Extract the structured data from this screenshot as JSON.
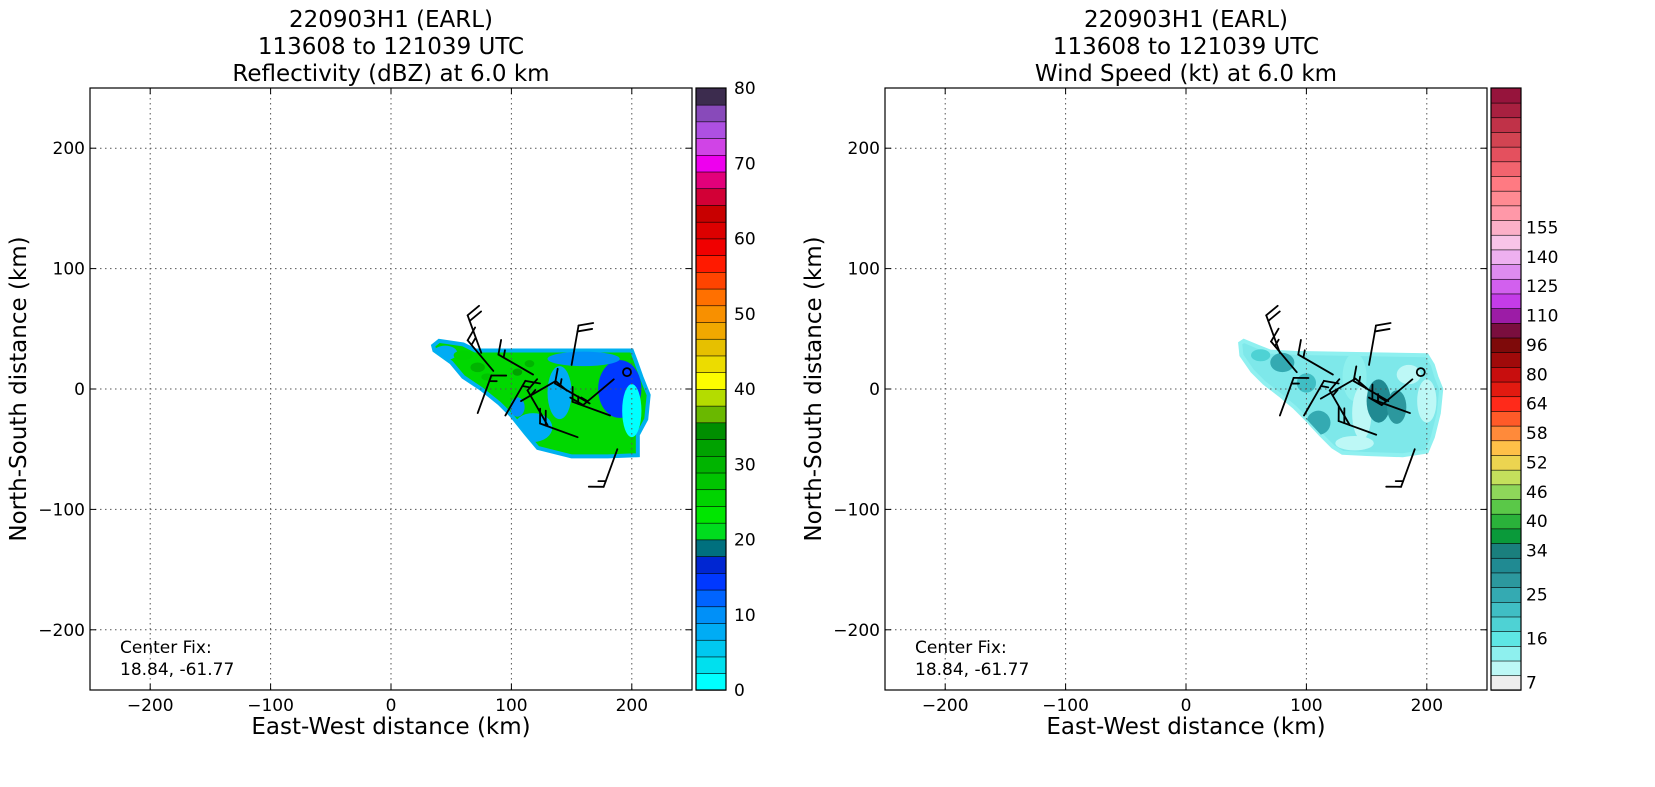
{
  "figure": {
    "background": "#ffffff"
  },
  "chart_data": [
    {
      "type": "heatmap",
      "title": [
        "220903H1 (EARL)",
        "113608 to 121039 UTC",
        "Reflectivity (dBZ) at 6.0 km"
      ],
      "xlabel": "East-West distance (km)",
      "ylabel": "North-South distance (km)",
      "xlim": [
        -250,
        250
      ],
      "ylim": [
        -250,
        250
      ],
      "xticks": [
        -200,
        -100,
        0,
        100,
        200
      ],
      "yticks": [
        -200,
        -100,
        0,
        100,
        200
      ],
      "xtick_labels": [
        "−200",
        "−100",
        "0",
        "100",
        "200"
      ],
      "ytick_labels": [
        "−200",
        "−100",
        "0",
        "100",
        "200"
      ],
      "grid": true,
      "annotation": [
        "Center Fix:",
        "18.84, -61.77"
      ],
      "colorbar": {
        "min": 0,
        "max": 80,
        "step": 2.5,
        "ticks": [
          0,
          10,
          20,
          30,
          40,
          50,
          60,
          70,
          80
        ],
        "tick_labels": [
          "0",
          "10",
          "20",
          "30",
          "40",
          "50",
          "60",
          "70",
          "80"
        ],
        "colors": [
          "#00ffff",
          "#00e0ee",
          "#00c8f0",
          "#00acf4",
          "#0090f8",
          "#0064ff",
          "#0038ff",
          "#0026d2",
          "#00707e",
          "#00dc1e",
          "#00e600",
          "#00d400",
          "#00c400",
          "#00b400",
          "#00a200",
          "#008e00",
          "#6ab800",
          "#b4dc00",
          "#fcfc00",
          "#ecdc00",
          "#e6c000",
          "#f0a800",
          "#f89000",
          "#ff7000",
          "#ff4400",
          "#ff1a00",
          "#f00000",
          "#dc0000",
          "#c80000",
          "#d20036",
          "#e2007a",
          "#ee00ee",
          "#d044e6",
          "#ae50e2",
          "#884aba",
          "#3c2c4e"
        ]
      },
      "echo_region": {
        "polygon": [
          [
            35,
            36
          ],
          [
            40,
            40
          ],
          [
            60,
            37
          ],
          [
            70,
            32
          ],
          [
            200,
            32
          ],
          [
            203,
            24
          ],
          [
            208,
            10
          ],
          [
            214,
            -5
          ],
          [
            212,
            -25
          ],
          [
            205,
            -38
          ],
          [
            205,
            -55
          ],
          [
            180,
            -56
          ],
          [
            150,
            -56
          ],
          [
            122,
            -49
          ],
          [
            112,
            -37
          ],
          [
            100,
            -22
          ],
          [
            90,
            -12
          ],
          [
            75,
            0
          ],
          [
            60,
            10
          ],
          [
            50,
            22
          ],
          [
            36,
            32
          ]
        ],
        "blobs": [
          {
            "x": 190,
            "y": 0,
            "rx": 18,
            "ry": 24,
            "value": 15
          },
          {
            "x": 200,
            "y": -18,
            "rx": 8,
            "ry": 22,
            "value": 2
          },
          {
            "x": 140,
            "y": -3,
            "rx": 10,
            "ry": 22,
            "value": 8
          },
          {
            "x": 118,
            "y": -32,
            "rx": 16,
            "ry": 12,
            "value": 8
          },
          {
            "x": 105,
            "y": -15,
            "rx": 6,
            "ry": 8,
            "value": 10
          },
          {
            "x": 160,
            "y": 25,
            "rx": 30,
            "ry": 6,
            "value": 12
          },
          {
            "x": 45,
            "y": 30,
            "rx": 10,
            "ry": 6,
            "value": 8
          },
          {
            "x": 60,
            "y": 28,
            "rx": 8,
            "ry": 4,
            "value": 28
          },
          {
            "x": 72,
            "y": 18,
            "rx": 6,
            "ry": 4,
            "value": 33
          },
          {
            "x": 105,
            "y": 14,
            "rx": 4,
            "ry": 3,
            "value": 35
          },
          {
            "x": 115,
            "y": 21,
            "rx": 4,
            "ry": 3,
            "value": 33
          },
          {
            "x": 80,
            "y": 10,
            "rx": 5,
            "ry": 3,
            "value": 30
          }
        ]
      },
      "wind_barbs": [
        {
          "x": 75,
          "y": 30,
          "dir": 340,
          "speed": 20
        },
        {
          "x": 85,
          "y": 15,
          "dir": 320,
          "speed": 15
        },
        {
          "x": 72,
          "y": -20,
          "dir": 20,
          "speed": 15
        },
        {
          "x": 95,
          "y": -22,
          "dir": 30,
          "speed": 15
        },
        {
          "x": 108,
          "y": -10,
          "dir": 60,
          "speed": 10
        },
        {
          "x": 118,
          "y": 12,
          "dir": 300,
          "speed": 15
        },
        {
          "x": 130,
          "y": -30,
          "dir": 330,
          "speed": 15
        },
        {
          "x": 150,
          "y": 20,
          "dir": 10,
          "speed": 20
        },
        {
          "x": 165,
          "y": -12,
          "dir": 300,
          "speed": 15
        },
        {
          "x": 155,
          "y": -40,
          "dir": 290,
          "speed": 20
        },
        {
          "x": 182,
          "y": -22,
          "dir": 290,
          "speed": 15
        },
        {
          "x": 188,
          "y": -50,
          "dir": 200,
          "speed": 15
        },
        {
          "x": 185,
          "y": 8,
          "dir": 230,
          "speed": 15
        },
        {
          "x": 196,
          "y": 14,
          "dir": 0,
          "speed": 2
        }
      ]
    },
    {
      "type": "heatmap",
      "title": [
        "220903H1 (EARL)",
        "113608 to 121039 UTC",
        "Wind Speed (kt) at 6.0 km"
      ],
      "xlabel": "East-West distance (km)",
      "ylabel": "North-South distance (km)",
      "xlim": [
        -250,
        250
      ],
      "ylim": [
        -250,
        250
      ],
      "xticks": [
        -200,
        -100,
        0,
        100,
        200
      ],
      "yticks": [
        -200,
        -100,
        0,
        100,
        200
      ],
      "xtick_labels": [
        "−200",
        "−100",
        "0",
        "100",
        "200"
      ],
      "ytick_labels": [
        "−200",
        "−100",
        "0",
        "100",
        "200"
      ],
      "grid": true,
      "annotation": [
        "Center Fix:",
        "18.84, -61.77"
      ],
      "colorbar": {
        "tick_labels": [
          "7",
          "16",
          "25",
          "34",
          "40",
          "46",
          "52",
          "58",
          "64",
          "80",
          "96",
          "110",
          "125",
          "140",
          "155"
        ],
        "tick_index": [
          0,
          3,
          6,
          9,
          11,
          13,
          15,
          17,
          19,
          21,
          23,
          25,
          27,
          29,
          31
        ],
        "colors": [
          "#eeeeee",
          "#bdf8f6",
          "#8ef0ee",
          "#5ee6e4",
          "#4ed2d4",
          "#40bec4",
          "#34aab2",
          "#2c989e",
          "#208a92",
          "#1a7f7d",
          "#0a9a3a",
          "#2ab23a",
          "#5ac848",
          "#8ed65a",
          "#c4e05c",
          "#ecd450",
          "#ffc048",
          "#ff8a3a",
          "#ff5a28",
          "#ff2a1a",
          "#e21a10",
          "#c80e0e",
          "#a00a0a",
          "#7e0a0a",
          "#7a0e3e",
          "#9c1ca6",
          "#c43ce8",
          "#d260ee",
          "#de8cf0",
          "#eeb0f0",
          "#f8c4e8",
          "#fcb0c8",
          "#ff98a8",
          "#ff8a92",
          "#ff7a82",
          "#f2646e",
          "#e4505e",
          "#d24452",
          "#c03248",
          "#a82040",
          "#96143c"
        ]
      },
      "wind_region": {
        "polygon": [
          [
            45,
            38
          ],
          [
            48,
            40
          ],
          [
            60,
            35
          ],
          [
            70,
            31
          ],
          [
            90,
            30
          ],
          [
            200,
            28
          ],
          [
            205,
            20
          ],
          [
            208,
            10
          ],
          [
            212,
            0
          ],
          [
            210,
            -20
          ],
          [
            205,
            -40
          ],
          [
            200,
            -52
          ],
          [
            180,
            -55
          ],
          [
            150,
            -54
          ],
          [
            130,
            -53
          ],
          [
            122,
            -48
          ],
          [
            112,
            -38
          ],
          [
            100,
            -25
          ],
          [
            90,
            -15
          ],
          [
            78,
            -5
          ],
          [
            65,
            5
          ],
          [
            55,
            15
          ],
          [
            46,
            28
          ]
        ],
        "blobs": [
          {
            "x": 140,
            "y": 10,
            "rx": 10,
            "ry": 20,
            "value": 2
          },
          {
            "x": 146,
            "y": -20,
            "rx": 8,
            "ry": 22,
            "value": 1
          },
          {
            "x": 160,
            "y": -10,
            "rx": 10,
            "ry": 18,
            "value": 8
          },
          {
            "x": 175,
            "y": -15,
            "rx": 8,
            "ry": 14,
            "value": 7
          },
          {
            "x": 200,
            "y": -10,
            "rx": 8,
            "ry": 18,
            "value": 1
          },
          {
            "x": 110,
            "y": -28,
            "rx": 10,
            "ry": 10,
            "value": 6
          },
          {
            "x": 80,
            "y": 22,
            "rx": 10,
            "ry": 8,
            "value": 6
          },
          {
            "x": 62,
            "y": 28,
            "rx": 8,
            "ry": 5,
            "value": 4
          },
          {
            "x": 100,
            "y": 5,
            "rx": 8,
            "ry": 8,
            "value": 5
          },
          {
            "x": 185,
            "y": 12,
            "rx": 10,
            "ry": 8,
            "value": 1
          },
          {
            "x": 140,
            "y": -45,
            "rx": 16,
            "ry": 6,
            "value": 1
          }
        ]
      },
      "wind_barbs": [
        {
          "x": 78,
          "y": 30,
          "dir": 340,
          "speed": 20
        },
        {
          "x": 92,
          "y": 14,
          "dir": 320,
          "speed": 15
        },
        {
          "x": 78,
          "y": -22,
          "dir": 20,
          "speed": 15
        },
        {
          "x": 98,
          "y": -22,
          "dir": 30,
          "speed": 15
        },
        {
          "x": 112,
          "y": -8,
          "dir": 60,
          "speed": 10
        },
        {
          "x": 122,
          "y": 12,
          "dir": 300,
          "speed": 15
        },
        {
          "x": 136,
          "y": -30,
          "dir": 330,
          "speed": 15
        },
        {
          "x": 152,
          "y": 20,
          "dir": 10,
          "speed": 20
        },
        {
          "x": 168,
          "y": -10,
          "dir": 300,
          "speed": 15
        },
        {
          "x": 158,
          "y": -38,
          "dir": 290,
          "speed": 20
        },
        {
          "x": 186,
          "y": -20,
          "dir": 290,
          "speed": 15
        },
        {
          "x": 190,
          "y": -50,
          "dir": 200,
          "speed": 15
        },
        {
          "x": 188,
          "y": 8,
          "dir": 230,
          "speed": 15
        },
        {
          "x": 195,
          "y": 14,
          "dir": 0,
          "speed": 2
        }
      ]
    }
  ]
}
